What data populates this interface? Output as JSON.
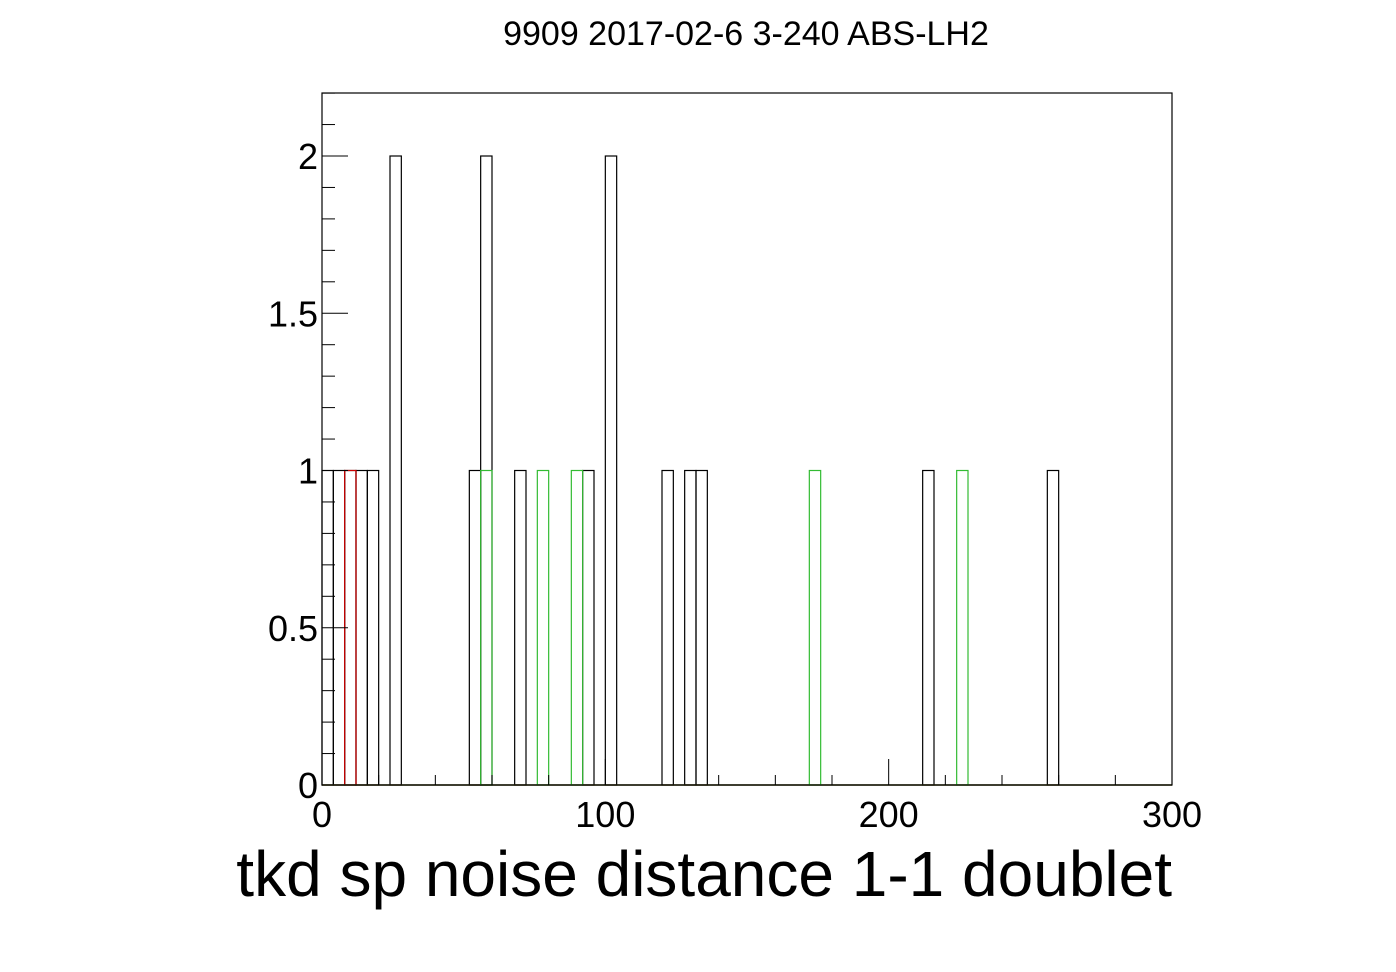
{
  "chart_data": {
    "type": "bar",
    "title": "9909 2017-02-6 3-240 ABS-LH2",
    "xlabel": "tkd sp noise distance 1-1 doublet",
    "ylabel": "",
    "xlim": [
      0,
      300
    ],
    "ylim": [
      0,
      2.2
    ],
    "bin_width": 4,
    "x_ticks": [
      0,
      100,
      200,
      300
    ],
    "x_tick_labels": [
      "0",
      "100",
      "200",
      "300"
    ],
    "y_ticks": [
      0,
      0.5,
      1,
      1.5,
      2
    ],
    "y_tick_labels": [
      "0",
      "0.5",
      "1",
      "1.5",
      "2"
    ],
    "grid": false,
    "legend": "none",
    "series": [
      {
        "color": "#000000",
        "bins": [
          {
            "x": 0,
            "y": 1
          },
          {
            "x": 4,
            "y": 1
          },
          {
            "x": 8,
            "y": 1
          },
          {
            "x": 12,
            "y": 1
          },
          {
            "x": 16,
            "y": 1
          },
          {
            "x": 24,
            "y": 2
          },
          {
            "x": 52,
            "y": 1
          },
          {
            "x": 56,
            "y": 2
          },
          {
            "x": 68,
            "y": 1
          },
          {
            "x": 92,
            "y": 1
          },
          {
            "x": 100,
            "y": 2
          },
          {
            "x": 120,
            "y": 1
          },
          {
            "x": 128,
            "y": 1
          },
          {
            "x": 132,
            "y": 1
          },
          {
            "x": 212,
            "y": 1
          },
          {
            "x": 256,
            "y": 1
          }
        ]
      },
      {
        "color": "#cc0000",
        "bins": [
          {
            "x": 8,
            "y": 1
          }
        ]
      },
      {
        "color": "#33bb33",
        "bins": [
          {
            "x": 56,
            "y": 1
          },
          {
            "x": 76,
            "y": 1
          },
          {
            "x": 88,
            "y": 1
          },
          {
            "x": 172,
            "y": 1
          },
          {
            "x": 224,
            "y": 1
          }
        ]
      }
    ]
  }
}
